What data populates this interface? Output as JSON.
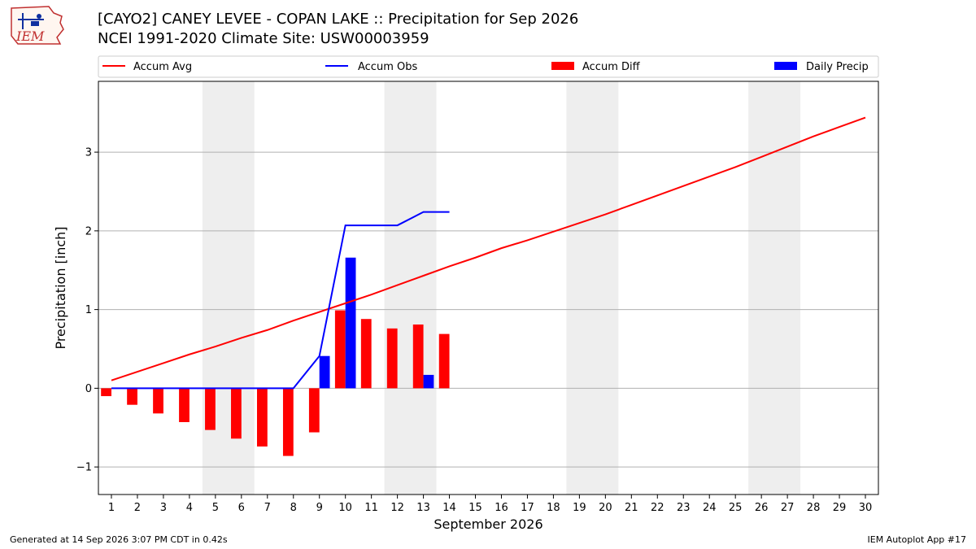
{
  "header": {
    "title_line1": "[CAYO2] CANEY LEVEE - COPAN LAKE :: Precipitation for Sep 2026",
    "title_line2": "NCEI 1991-2020 Climate Site: USW00003959",
    "logo_text": "IEM"
  },
  "footer": {
    "generated": "Generated at 14 Sep 2026 3:07 PM CDT in 0.42s",
    "app": "IEM Autoplot App #17"
  },
  "colors": {
    "accum_avg": "#ff0000",
    "accum_obs": "#0000ff",
    "accum_diff": "#ff0000",
    "daily_precip": "#0000ff",
    "weekend_shade": "#eeeeee",
    "grid": "#b0b0b0"
  },
  "chart_data": {
    "type": "bar",
    "xlabel": "September 2026",
    "ylabel": "Precipitation [inch]",
    "ylim": [
      -1.35,
      3.9
    ],
    "xlim": [
      0.5,
      30.5
    ],
    "yticks": [
      -1,
      0,
      1,
      2,
      3
    ],
    "yticklabels": [
      "−1",
      "0",
      "1",
      "2",
      "3"
    ],
    "x": [
      1,
      2,
      3,
      4,
      5,
      6,
      7,
      8,
      9,
      10,
      11,
      12,
      13,
      14,
      15,
      16,
      17,
      18,
      19,
      20,
      21,
      22,
      23,
      24,
      25,
      26,
      27,
      28,
      29,
      30
    ],
    "grid": "horizontal",
    "legend_position": "top",
    "weekend_spans": [
      [
        4.5,
        6.5
      ],
      [
        11.5,
        13.5
      ],
      [
        18.5,
        20.5
      ],
      [
        25.5,
        27.5
      ]
    ],
    "legend": [
      "Accum Avg",
      "Accum Obs",
      "Accum Diff",
      "Daily Precip"
    ],
    "series": [
      {
        "name": "Accum Avg",
        "kind": "line",
        "x": [
          1,
          2,
          3,
          4,
          5,
          6,
          7,
          8,
          9,
          10,
          11,
          12,
          13,
          14,
          15,
          16,
          17,
          18,
          19,
          20,
          21,
          22,
          23,
          24,
          25,
          26,
          27,
          28,
          29,
          30
        ],
        "values": [
          0.1,
          0.21,
          0.32,
          0.43,
          0.53,
          0.64,
          0.74,
          0.86,
          0.97,
          1.08,
          1.19,
          1.31,
          1.43,
          1.55,
          1.66,
          1.78,
          1.88,
          1.99,
          2.1,
          2.21,
          2.33,
          2.45,
          2.57,
          2.69,
          2.81,
          2.94,
          3.07,
          3.2,
          3.32,
          3.44
        ]
      },
      {
        "name": "Accum Obs",
        "kind": "line",
        "x": [
          1,
          2,
          3,
          4,
          5,
          6,
          7,
          8,
          9,
          10,
          11,
          12,
          13,
          14
        ],
        "values": [
          0,
          0,
          0,
          0,
          0,
          0,
          0,
          0,
          0.41,
          2.07,
          2.07,
          2.07,
          2.24,
          2.24
        ]
      },
      {
        "name": "Accum Diff",
        "kind": "bar",
        "x": [
          1,
          2,
          3,
          4,
          5,
          6,
          7,
          8,
          9,
          10,
          11,
          12,
          13,
          14
        ],
        "values": [
          -0.1,
          -0.21,
          -0.32,
          -0.43,
          -0.53,
          -0.64,
          -0.74,
          -0.86,
          -0.56,
          0.99,
          0.88,
          0.76,
          0.81,
          0.69
        ]
      },
      {
        "name": "Daily Precip",
        "kind": "bar",
        "x": [
          1,
          2,
          3,
          4,
          5,
          6,
          7,
          8,
          9,
          10,
          11,
          12,
          13,
          14
        ],
        "values": [
          0,
          0,
          0,
          0,
          0,
          0,
          0,
          0,
          0.41,
          1.66,
          0,
          0,
          0.17,
          0
        ]
      }
    ]
  }
}
